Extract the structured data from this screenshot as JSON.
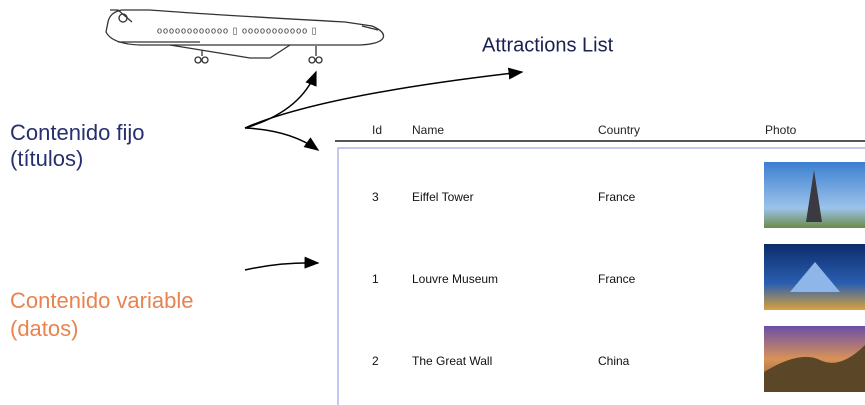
{
  "labels": {
    "fixed": [
      "Contenido fijo",
      "(títulos)"
    ],
    "variable": [
      "Contenido variable",
      "(datos)"
    ]
  },
  "report": {
    "title": "Attractions List",
    "table": {
      "headers": [
        "Id",
        "Name",
        "Country",
        "Photo"
      ],
      "rows": [
        [
          3,
          "Eiffel Tower",
          "France"
        ],
        [
          1,
          "Louvre Museum",
          "France"
        ],
        [
          2,
          "The Great Wall",
          "China"
        ]
      ]
    }
  }
}
